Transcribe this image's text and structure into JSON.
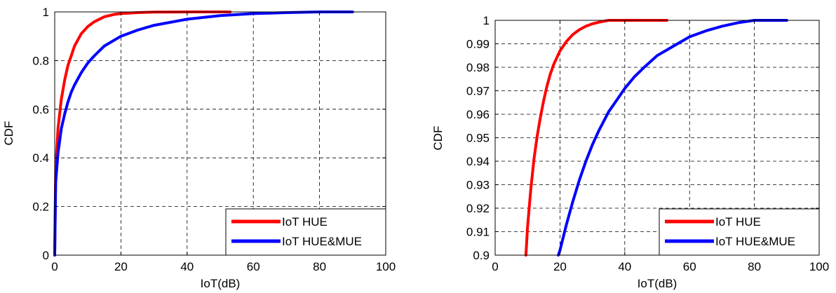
{
  "chart_data": [
    {
      "type": "line",
      "title": "",
      "xlabel": "IoT(dB)",
      "ylabel": "CDF",
      "xlim": [
        0,
        100
      ],
      "ylim": [
        0,
        1
      ],
      "xticks": [
        0,
        20,
        40,
        60,
        80,
        100
      ],
      "yticks": [
        0,
        0.2,
        0.4,
        0.6,
        0.8,
        1
      ],
      "xtick_labels": [
        "0",
        "20",
        "40",
        "60",
        "80",
        "100"
      ],
      "ytick_labels": [
        "0",
        "0.2",
        "0.4",
        "0.6",
        "0.8",
        "1"
      ],
      "grid": true,
      "legend_position": "bottom-right",
      "series": [
        {
          "name": "IoT HUE",
          "color": "#ff0000",
          "x": [
            0,
            0.3,
            1,
            2,
            3,
            4,
            5,
            6,
            8,
            10,
            12,
            15,
            18,
            20,
            25,
            30,
            40,
            53
          ],
          "y": [
            0,
            0.35,
            0.52,
            0.64,
            0.72,
            0.78,
            0.82,
            0.86,
            0.91,
            0.94,
            0.96,
            0.98,
            0.99,
            0.993,
            0.997,
            0.999,
            1.0,
            1.0
          ]
        },
        {
          "name": "IoT HUE&MUE",
          "color": "#0000ff",
          "x": [
            0,
            0.3,
            1,
            2,
            3,
            4,
            5,
            6,
            8,
            10,
            12,
            15,
            20,
            25,
            30,
            40,
            50,
            60,
            70,
            80,
            90
          ],
          "y": [
            0,
            0.3,
            0.42,
            0.52,
            0.58,
            0.63,
            0.67,
            0.7,
            0.75,
            0.79,
            0.82,
            0.86,
            0.9,
            0.925,
            0.945,
            0.97,
            0.985,
            0.993,
            0.997,
            1.0,
            1.0
          ]
        }
      ]
    },
    {
      "type": "line",
      "title": "",
      "xlabel": "IoT(dB)",
      "ylabel": "CDF",
      "xlim": [
        0,
        100
      ],
      "ylim": [
        0.9,
        1
      ],
      "xticks": [
        0,
        20,
        40,
        60,
        80,
        100
      ],
      "yticks": [
        0.9,
        0.91,
        0.92,
        0.93,
        0.94,
        0.95,
        0.96,
        0.97,
        0.98,
        0.99,
        1
      ],
      "xtick_labels": [
        "0",
        "20",
        "40",
        "60",
        "80",
        "100"
      ],
      "ytick_labels": [
        "0.9",
        "0.91",
        "0.92",
        "0.93",
        "0.94",
        "0.95",
        "0.96",
        "0.97",
        "0.98",
        "0.99",
        "1"
      ],
      "grid": true,
      "legend_position": "bottom-right",
      "series": [
        {
          "name": "IoT HUE",
          "color": "#ff0000",
          "x": [
            9.5,
            10,
            11,
            12,
            13,
            14,
            15,
            16,
            17,
            18,
            19,
            20,
            22,
            24,
            26,
            28,
            30,
            32,
            35,
            40,
            45,
            53
          ],
          "y": [
            0.9,
            0.912,
            0.928,
            0.941,
            0.951,
            0.959,
            0.966,
            0.972,
            0.977,
            0.981,
            0.984,
            0.987,
            0.991,
            0.994,
            0.996,
            0.9975,
            0.9985,
            0.9992,
            1.0,
            1.0,
            1.0,
            1.0
          ]
        },
        {
          "name": "IoT HUE&MUE",
          "color": "#0000ff",
          "x": [
            19.5,
            20,
            22,
            24,
            26,
            28,
            30,
            32,
            35,
            38,
            40,
            43,
            46,
            50,
            55,
            60,
            65,
            70,
            75,
            80,
            85,
            90
          ],
          "y": [
            0.9,
            0.902,
            0.913,
            0.923,
            0.932,
            0.94,
            0.947,
            0.953,
            0.961,
            0.967,
            0.971,
            0.976,
            0.98,
            0.985,
            0.989,
            0.993,
            0.9955,
            0.9975,
            0.999,
            1.0,
            1.0,
            1.0
          ]
        }
      ]
    }
  ]
}
